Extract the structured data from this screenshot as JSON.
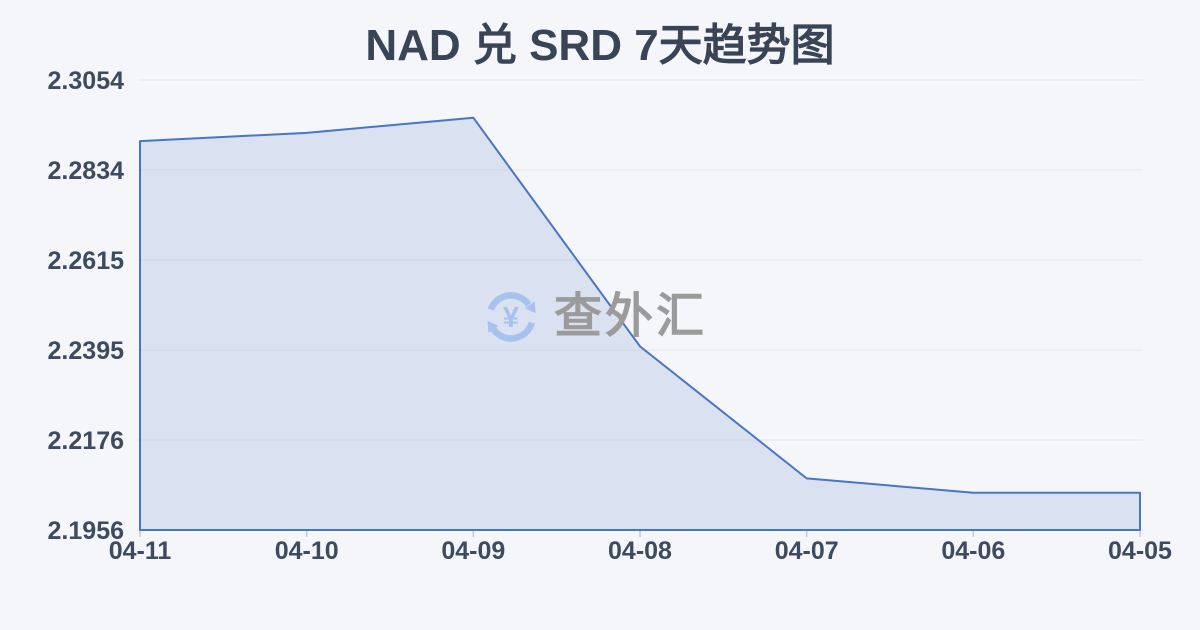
{
  "header": {
    "title": "NAD 兑 SRD 7天趋势图"
  },
  "watermark": {
    "icon": "currency-exchange-sync-icon",
    "text": "查外汇"
  },
  "colors": {
    "background": "#f4f6f9",
    "line": "#4a74c8",
    "area_fill_hex": "#dae1f3",
    "area_fill_rgba": "rgba(84,116,200,0.16)",
    "gridline": "#e3e7ee",
    "axis_tick": "#c3cad6",
    "axis_label": "#3d4a5f",
    "title_text": "#3a4457",
    "watermark_text": "#9b9b9b",
    "watermark_icon": "#a6c3f0"
  },
  "chart_data": {
    "type": "area",
    "title": "NAD 兑 SRD 7天趋势图",
    "categories": [
      "04-11",
      "04-10",
      "04-09",
      "04-08",
      "04-07",
      "04-06",
      "04-05"
    ],
    "values": [
      2.2905,
      2.2925,
      2.2962,
      2.2404,
      2.2082,
      2.2047,
      2.2047
    ],
    "y_tick_labels": [
      "2.3054",
      "2.2834",
      "2.2615",
      "2.2395",
      "2.2176",
      "2.1956"
    ],
    "ylim": [
      2.1956,
      2.3054
    ],
    "xlabel": "",
    "ylabel": "",
    "grid": true,
    "legend": false
  }
}
